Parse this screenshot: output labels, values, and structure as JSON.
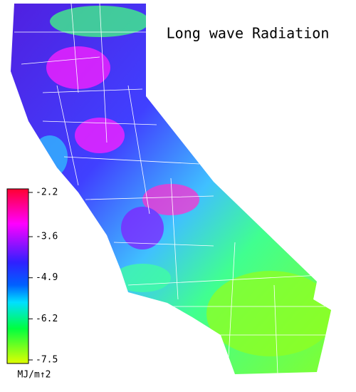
{
  "title": "Long wave Radiation",
  "colorbar": {
    "ticks": [
      -2.2,
      -3.6,
      -4.9,
      -6.2,
      -7.5
    ],
    "label": "MJ/m↑2"
  }
}
